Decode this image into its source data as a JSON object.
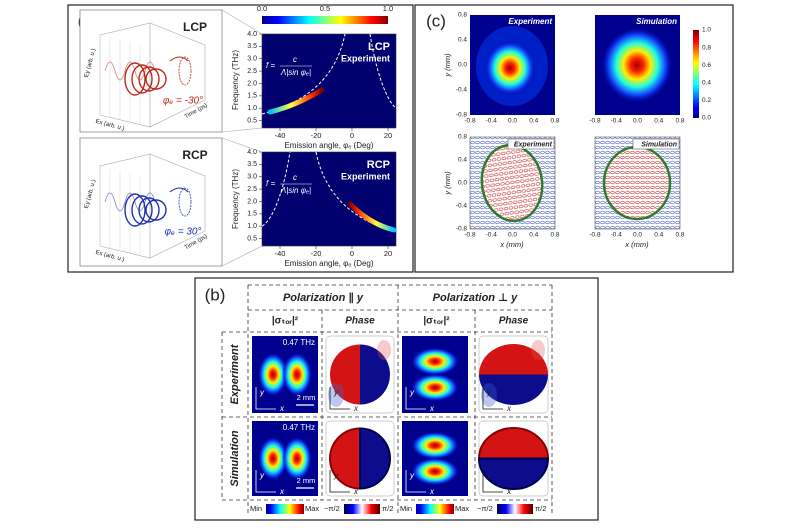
{
  "panel_a": {
    "label": "(a)",
    "colorbar_ticks": [
      "0.0",
      "0.5",
      "1.0"
    ],
    "y_axis_label": "Frequency (THz)",
    "y_ticks": [
      "0.5",
      "1.0",
      "1.5",
      "2.0",
      "2.5",
      "3.0",
      "3.5",
      "4.0"
    ],
    "x_axis_label": "Emission angle, φₑ (Deg)",
    "x_ticks": [
      "-40",
      "-20",
      "0",
      "20"
    ],
    "formula": {
      "lhs": "f =",
      "numerator": "c",
      "denominator": "Λ|sin φₑ|"
    },
    "inset_axes": {
      "ex": "Ex (arb. u.)",
      "ey": "Ey (arb. u.)",
      "time": "Time (ps)"
    },
    "lcp": {
      "title": "LCP",
      "angle": "φₑ = -30°",
      "map_title": "LCP",
      "map_subtitle": "Experiment"
    },
    "rcp": {
      "title": "RCP",
      "angle": "φₑ = 30°",
      "map_title": "RCP",
      "map_subtitle": "Experiment"
    }
  },
  "panel_c": {
    "label": "(c)",
    "titles": [
      "Experiment",
      "Simulation"
    ],
    "colorbar_ticks": [
      "1.0",
      "0.8",
      "0.6",
      "0.4",
      "0.2",
      "0.0"
    ],
    "x_ticks": [
      "-0.8",
      "-0.4",
      "0.0",
      "0.4",
      "0.8"
    ],
    "y_ticks": [
      "0.8",
      "0.4",
      "0.0",
      "-0.4",
      "-0.8"
    ],
    "x_axis_label": "x (mm)",
    "y_axis_label": "y (mm)"
  },
  "panel_b": {
    "label": "(b)",
    "groups": [
      "Polarization ∥ y",
      "Polarization ⊥ y"
    ],
    "columns": [
      "|σₜₒᵣ|²",
      "Phase"
    ],
    "rows": [
      "Experiment",
      "Simulation"
    ],
    "frequency": "0.47 THz",
    "scale": "2 mm",
    "axis_x": "x",
    "axis_y": "y",
    "amp_bar": [
      "Min",
      "Max"
    ],
    "phase_bar": [
      "−π/2",
      "π/2"
    ]
  }
}
